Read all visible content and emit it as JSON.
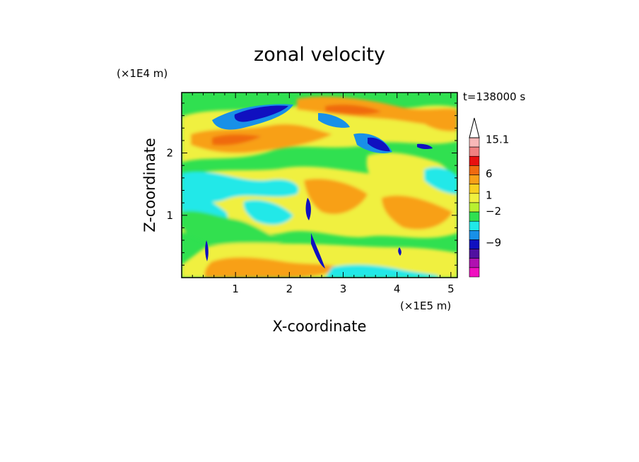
{
  "chart_data": {
    "type": "heatmap",
    "title": "zonal velocity",
    "xlabel": "X-coordinate",
    "ylabel": "Z-coordinate",
    "x_scale_label": "(×1E5 m)",
    "y_scale_label": "(×1E4 m)",
    "time_label": "t=138000 s",
    "xlim": [
      0,
      5.12
    ],
    "ylim": [
      0,
      2.97
    ],
    "x_ticks": [
      "1",
      "2",
      "3",
      "4",
      "5"
    ],
    "y_ticks": [
      "1",
      "2"
    ],
    "x_tick_values": [
      1,
      2,
      3,
      4,
      5
    ],
    "y_tick_values": [
      1,
      2
    ],
    "colorbar": {
      "labels": [
        "15.1",
        "6",
        "1",
        "−2",
        "−9"
      ],
      "levels_top_to_bottom": [
        {
          "color": "#f8b8b8"
        },
        {
          "color": "#f08080"
        },
        {
          "color": "#e81010"
        },
        {
          "color": "#f06a10"
        },
        {
          "color": "#f8a018"
        },
        {
          "color": "#f8d020"
        },
        {
          "color": "#f0f040"
        },
        {
          "color": "#b8f030"
        },
        {
          "color": "#30e050"
        },
        {
          "color": "#20e8e8"
        },
        {
          "color": "#1890e8"
        },
        {
          "color": "#1010c0"
        },
        {
          "color": "#5010a0"
        },
        {
          "color": "#b010b0"
        },
        {
          "color": "#f010c0"
        }
      ],
      "top_arrow": true
    },
    "palette": {
      "background": "#30e050",
      "orange": "#f8a018",
      "yellow": "#f0f040",
      "red": "#f06a10",
      "cyan": "#20e8e8",
      "blue": "#1010c0",
      "pink": "#f0a0a0"
    }
  }
}
